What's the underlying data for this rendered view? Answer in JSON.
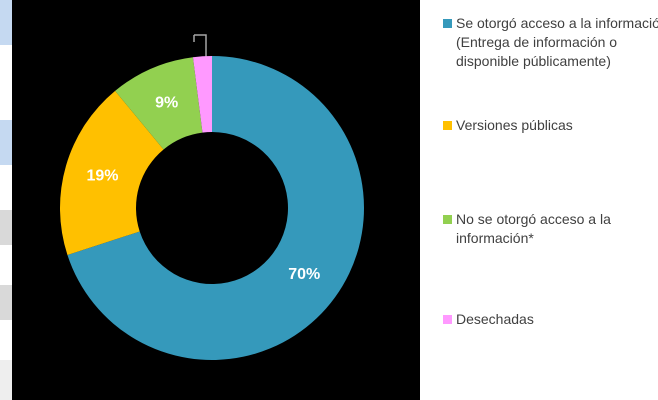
{
  "chart_data": {
    "type": "donut",
    "series": [
      {
        "name": "Se otorgó acceso a la información\n(Entrega de información o disponible públicamente)",
        "color": "#3599bb"
      },
      {
        "name": "Versiones públicas",
        "color": "#ffc000"
      },
      {
        "name": "No se otorgó acceso a la información*",
        "color": "#92d050"
      },
      {
        "name": "Desechadas",
        "color": "#ff99ff"
      }
    ],
    "values": [
      70,
      19,
      9,
      2
    ],
    "value_labels": [
      "70%",
      "19%",
      "9%",
      null
    ]
  }
}
